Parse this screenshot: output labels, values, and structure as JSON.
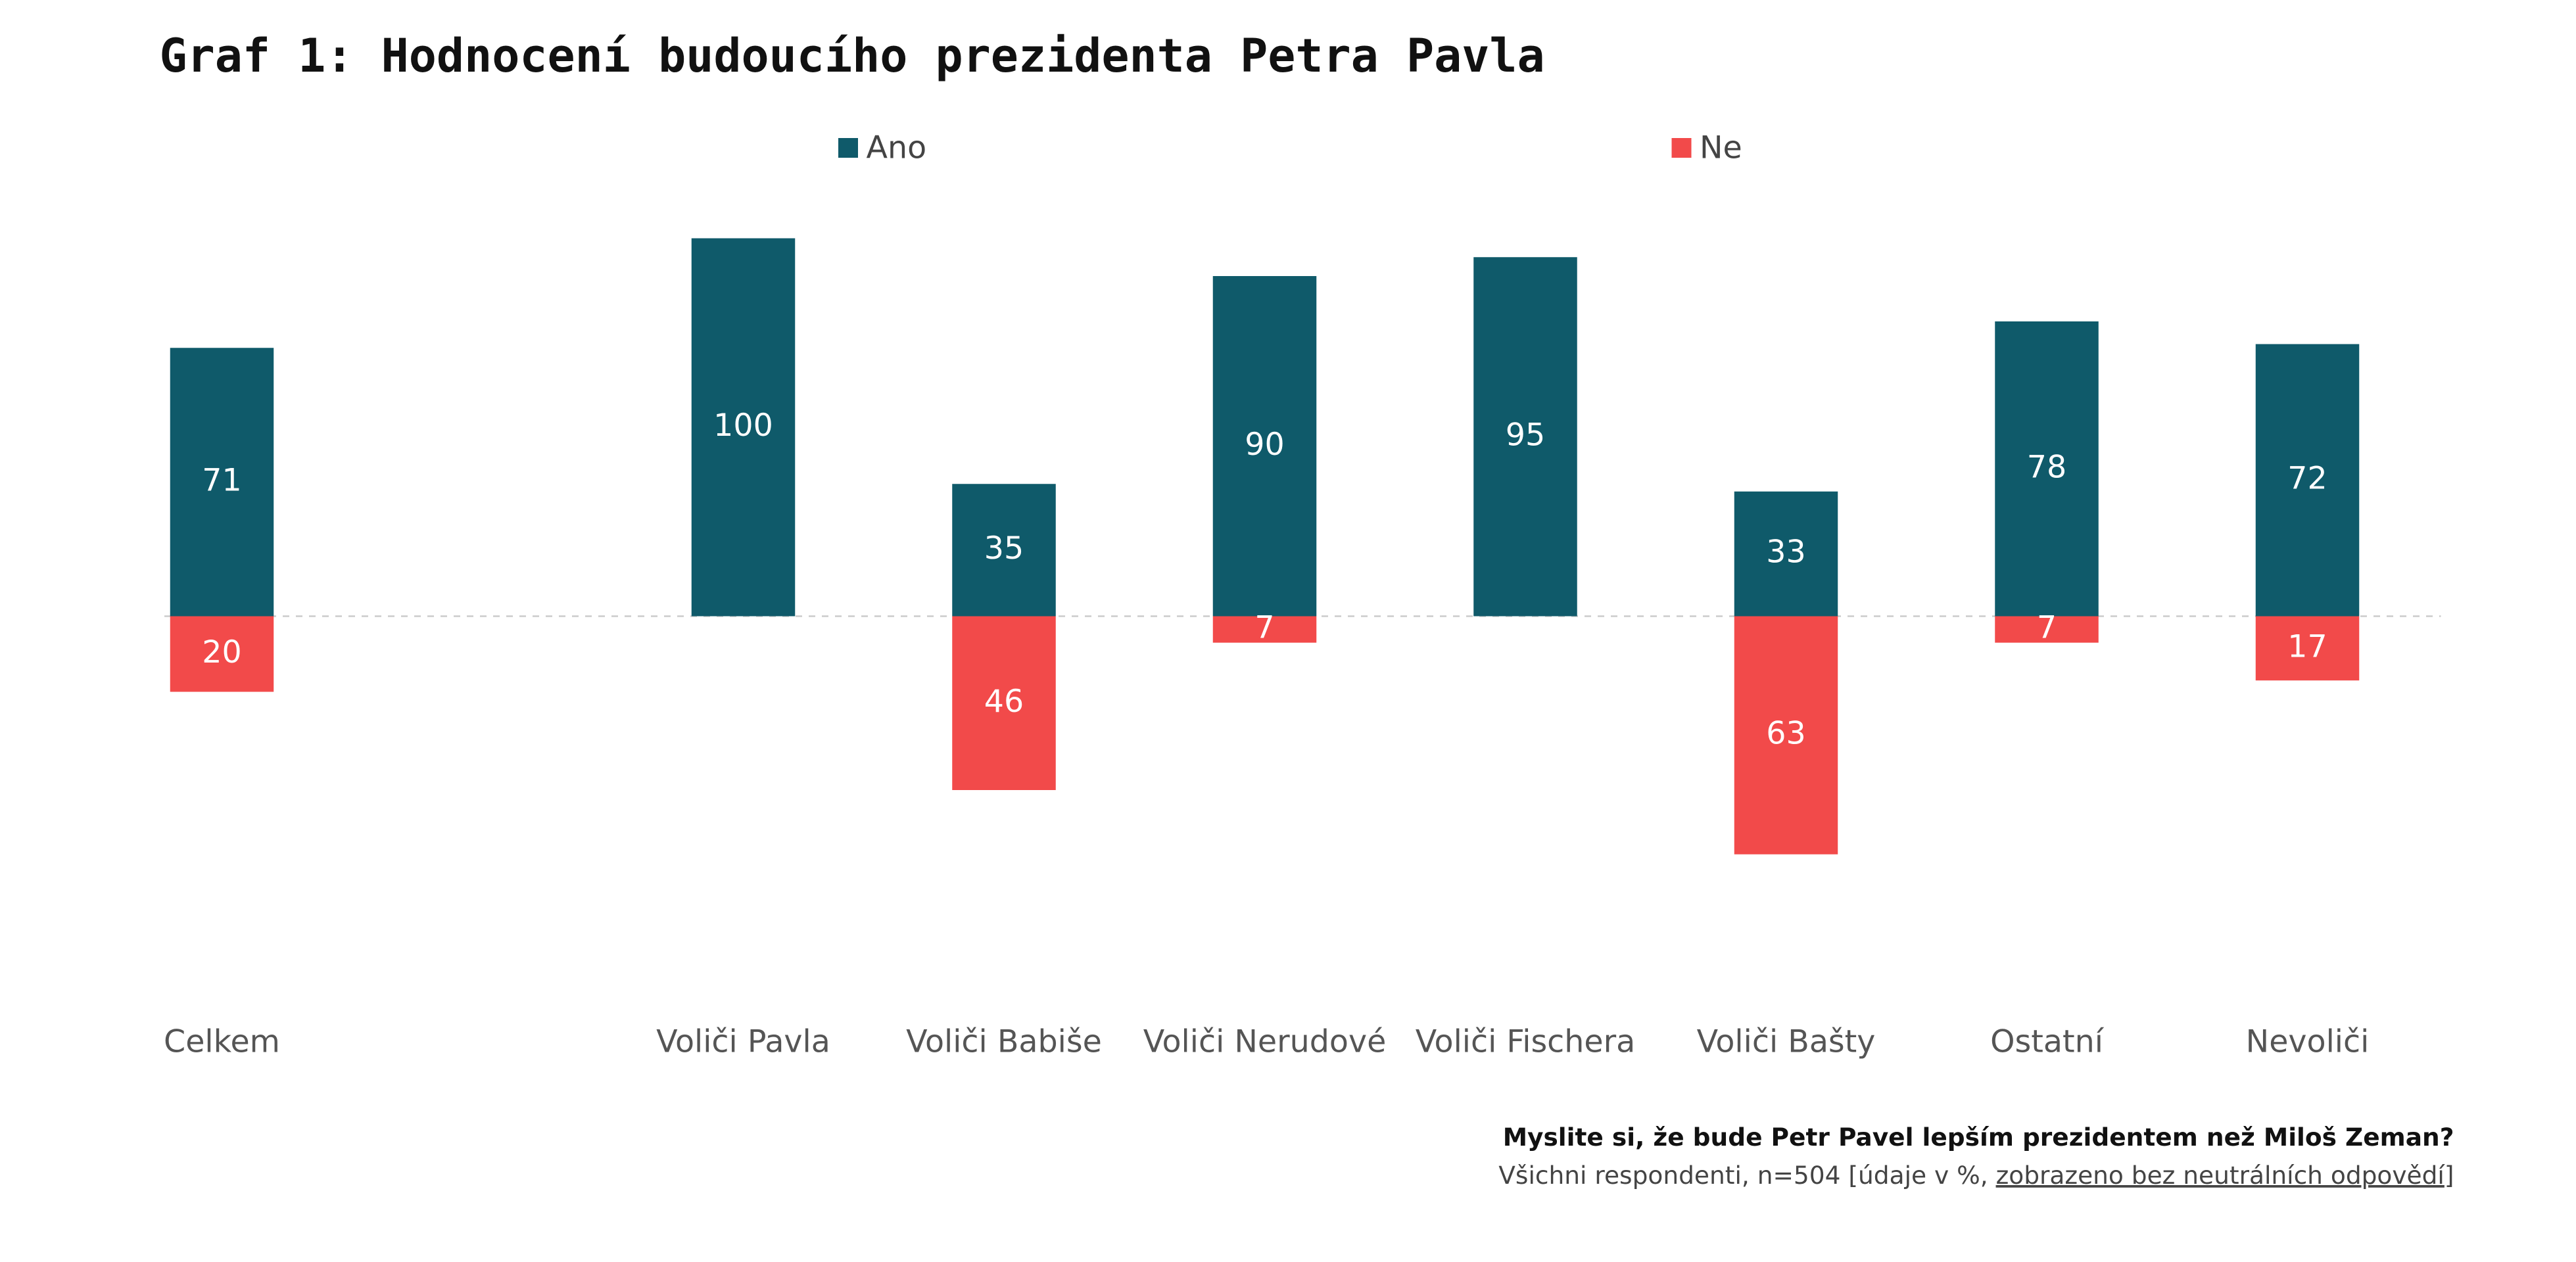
{
  "chart_data": {
    "type": "bar",
    "title": "Graf 1: Hodnocení budoucího prezidenta Petra Pavla",
    "categories": [
      "Celkem",
      null,
      "Voliči Pavla",
      "Voliči Babiše",
      "Voliči Nerudové",
      "Voliči Fischera",
      "Voliči Bašty",
      "Ostatní",
      "Nevoliči"
    ],
    "series": [
      {
        "name": "Ano",
        "color": "#0f5a6a",
        "values": [
          71,
          null,
          100,
          35,
          90,
          95,
          33,
          78,
          72
        ]
      },
      {
        "name": "Ne",
        "color": "#f24a4a",
        "values": [
          20,
          null,
          null,
          46,
          7,
          null,
          63,
          7,
          17
        ]
      }
    ],
    "question": "Myslite si, že bude Petr Pavel lepším prezidentem než Miloš Zeman?",
    "note": [
      "Všichni respondenti, n=504 [údaje v %, ",
      "zobrazeno bez neutrálních odpovědí",
      "]"
    ]
  }
}
